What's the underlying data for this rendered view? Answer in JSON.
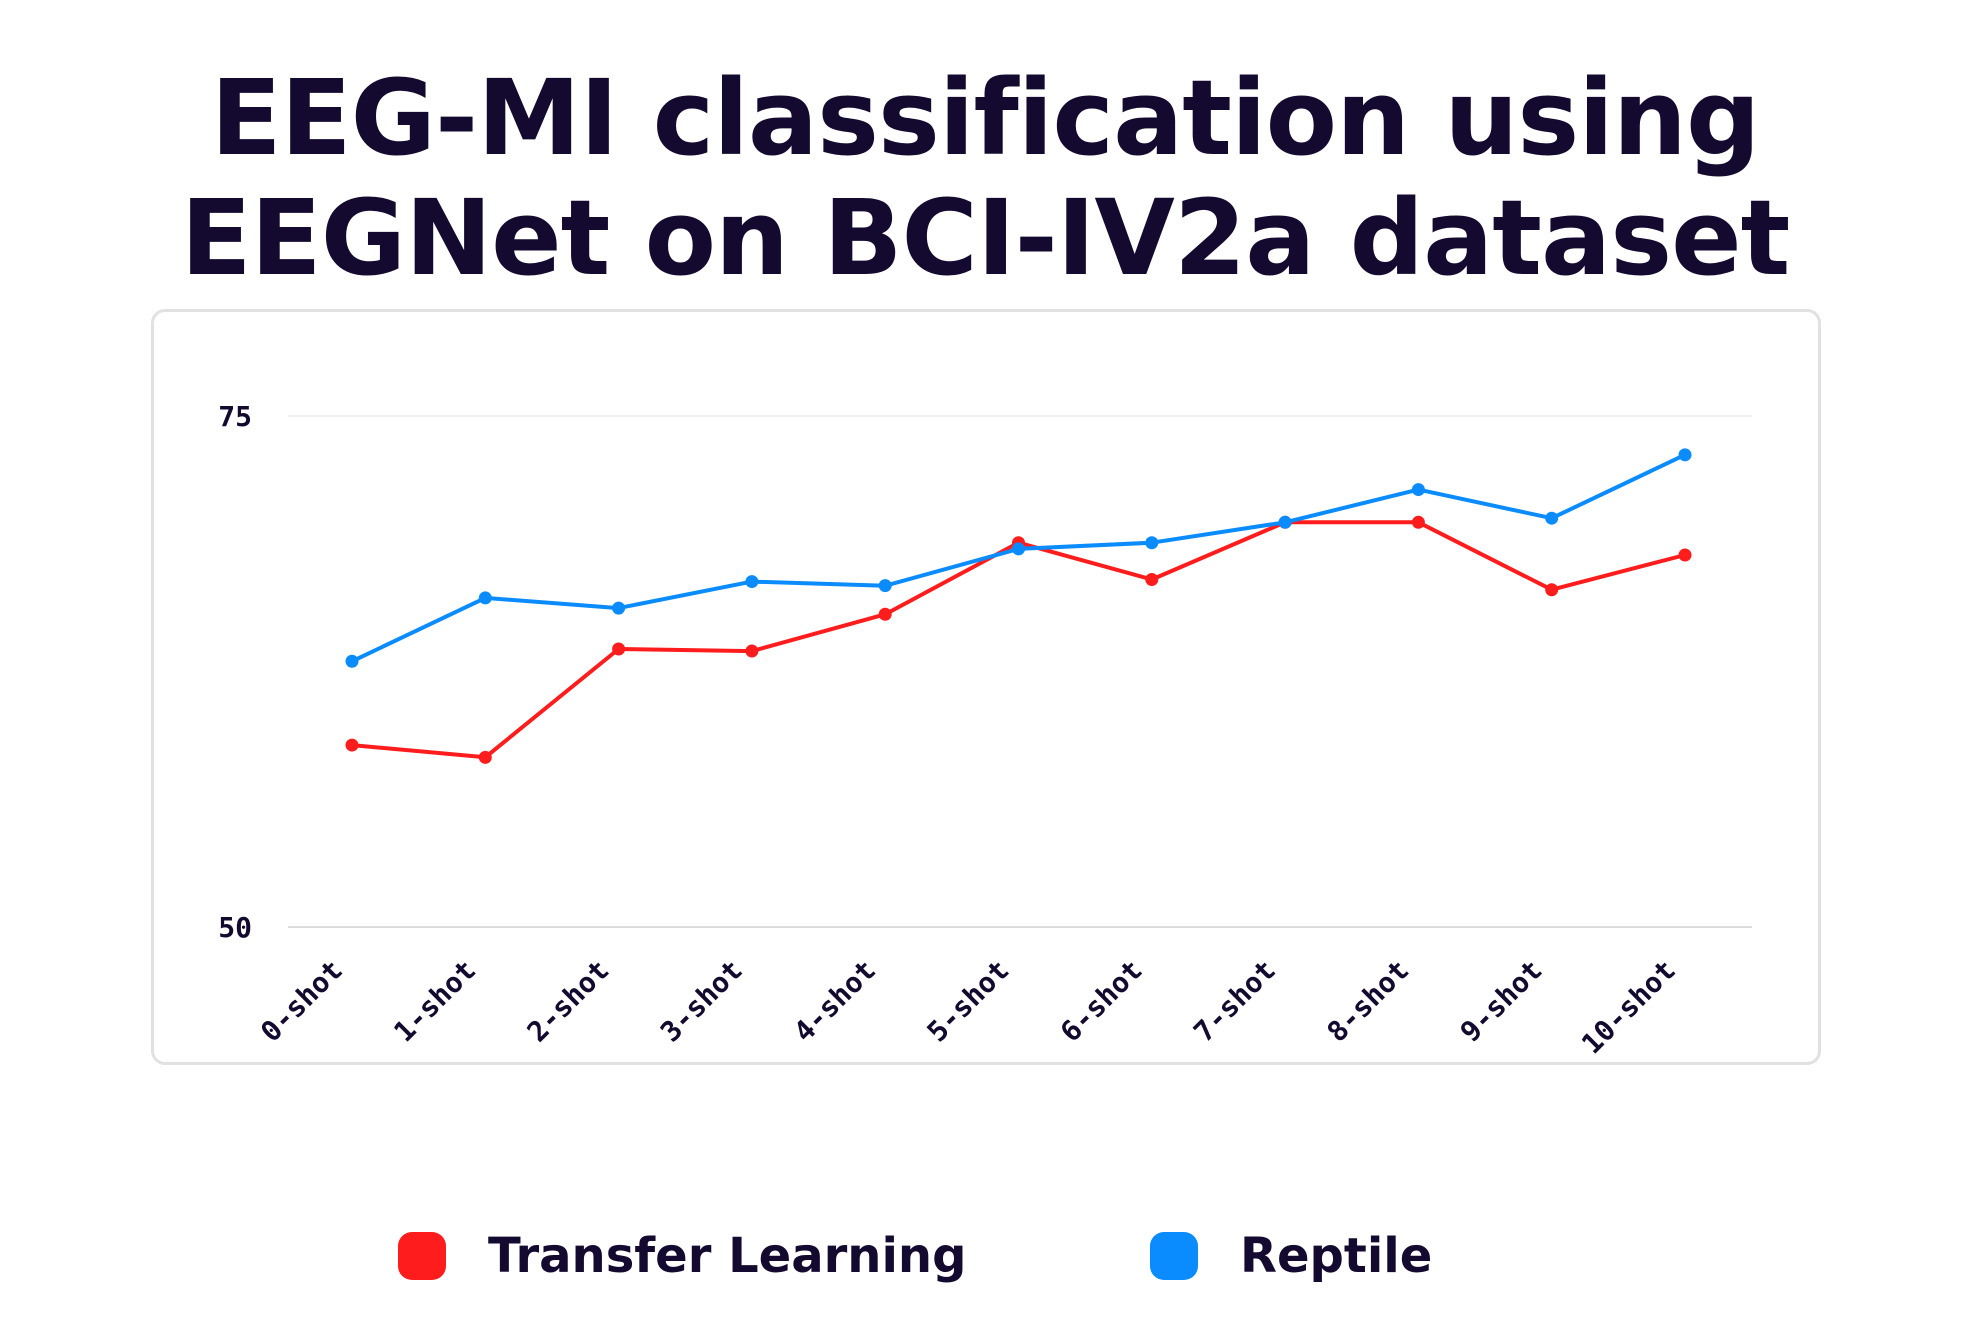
{
  "title_lines": [
    "EEG-MI classification using",
    "EEGNet on BCI-IV2a dataset"
  ],
  "colors": {
    "transfer": "#ff1c1c",
    "reptile": "#0a8cff",
    "text": "#140a30"
  },
  "chart_data": {
    "type": "line",
    "title": "EEG-MI classification using EEGNet on BCI-IV2a dataset",
    "categories": [
      "0-shot",
      "1-shot",
      "2-shot",
      "3-shot",
      "4-shot",
      "5-shot",
      "6-shot",
      "7-shot",
      "8-shot",
      "9-shot",
      "10-shot"
    ],
    "series": [
      {
        "name": "Transfer Learning",
        "color": "#ff1c1c",
        "values": [
          58.9,
          58.3,
          63.6,
          63.5,
          65.3,
          68.8,
          67.0,
          69.8,
          69.8,
          66.5,
          68.2
        ]
      },
      {
        "name": "Reptile",
        "color": "#0a8cff",
        "values": [
          63.0,
          66.1,
          65.6,
          66.9,
          66.7,
          68.5,
          68.8,
          69.8,
          71.4,
          70.0,
          73.1
        ]
      }
    ],
    "ylim": [
      50,
      75
    ],
    "yticks": [
      "50",
      "75"
    ],
    "grid": true,
    "legend_position": "bottom"
  }
}
